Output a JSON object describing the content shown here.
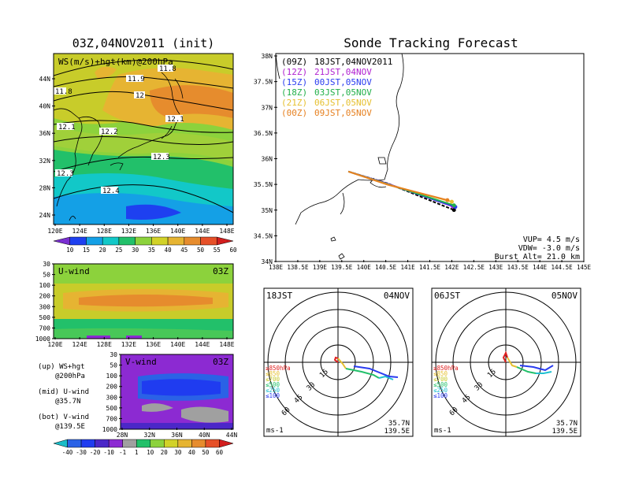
{
  "left_title": "03Z,04NOV2011 (init)",
  "right_title": "Sonde Tracking Forecast",
  "colors": {
    "ws_scale": [
      "#7a2fd1",
      "#1e40f0",
      "#14a0e6",
      "#12c8c8",
      "#22c06a",
      "#8cd23c",
      "#d2d228",
      "#e6b432",
      "#e68c2d",
      "#e65028",
      "#d21e1e"
    ],
    "wind_scale": [
      "#1abcc8",
      "#2a62e6",
      "#1f3cf0",
      "#4b27c8",
      "#8c2ad2",
      "#a0a0a0",
      "#22c06a",
      "#8cd23c",
      "#d2d228",
      "#e6b432",
      "#e68c2d",
      "#e65028",
      "#d21e1e"
    ]
  },
  "map_panel": {
    "label": "WS(m/s)+hgt(km)@200hPa",
    "lat_ticks": [
      "44N",
      "40N",
      "36N",
      "32N",
      "28N",
      "24N"
    ],
    "lon_ticks": [
      "120E",
      "124E",
      "128E",
      "132E",
      "136E",
      "140E",
      "144E",
      "148E"
    ],
    "contour_labels": [
      "11.8",
      "11.8",
      "11.9",
      "12",
      "12.1",
      "12.1",
      "12.2",
      "12.3",
      "12.3",
      "12.4"
    ],
    "colorbar_ticks": [
      "10",
      "15",
      "20",
      "25",
      "30",
      "35",
      "40",
      "45",
      "50",
      "55",
      "60"
    ]
  },
  "u_panel": {
    "label": "U-wind",
    "time": "03Z",
    "p_ticks": [
      "30",
      "50",
      "100",
      "200",
      "300",
      "500",
      "700",
      "1000"
    ],
    "lon_ticks": [
      "120E",
      "124E",
      "128E",
      "132E",
      "136E",
      "140E",
      "144E",
      "148E"
    ]
  },
  "v_panel": {
    "label": "V-wind",
    "time": "03Z",
    "p_ticks": [
      "30",
      "50",
      "100",
      "200",
      "300",
      "500",
      "700",
      "1000"
    ],
    "lat_ticks": [
      "28N",
      "32N",
      "36N",
      "40N",
      "44N"
    ],
    "colorbar_ticks": [
      "-40",
      "-30",
      "-20",
      "-10",
      "-1",
      "1",
      "10",
      "20",
      "30",
      "40",
      "50",
      "60"
    ]
  },
  "legend_text": [
    {
      "a": "(up) WS+hgt",
      "b": "@200hPa"
    },
    {
      "a": "(mid) U-wind",
      "b": "@35.7N"
    },
    {
      "a": "(bot) V-wind",
      "b": "@139.5E"
    }
  ],
  "track_panel": {
    "lat_ticks": [
      "38N",
      "37.5N",
      "37N",
      "36.5N",
      "36N",
      "35.5N",
      "35N",
      "34.5N",
      "34N"
    ],
    "lon_ticks": [
      "138E",
      "138.5E",
      "139E",
      "139.5E",
      "140E",
      "140.5E",
      "141E",
      "141.5E",
      "142E",
      "142.5E",
      "143E",
      "143.5E",
      "144E",
      "144.5E",
      "145E"
    ],
    "legend": [
      {
        "run": "(09Z)",
        "time": "18JST,04NOV2011",
        "color": "#000000"
      },
      {
        "run": "(12Z)",
        "time": "21JST,04NOV",
        "color": "#b01fd0"
      },
      {
        "run": "(15Z)",
        "time": "00JST,05NOV",
        "color": "#2a3cf0"
      },
      {
        "run": "(18Z)",
        "time": "03JST,05NOV",
        "color": "#22b04a"
      },
      {
        "run": "(21Z)",
        "time": "06JST,05NOV",
        "color": "#e6c030"
      },
      {
        "run": "(00Z)",
        "time": "09JST,05NOV",
        "color": "#e68020"
      }
    ],
    "params": [
      "VUP= 4.5 m/s",
      "VDW= -3.0 m/s",
      "Burst Alt= 21.0 km"
    ]
  },
  "hodographs": [
    {
      "jst": "18JST",
      "date": "04NOV",
      "ring_labels": [
        "15",
        "30",
        "45",
        "60"
      ],
      "unit": "ms-1",
      "loc1": "35.7N",
      "loc2": "139.5E",
      "levels": [
        {
          "t": "≥850hPa",
          "c": "#e02020"
        },
        {
          "t": "≤850",
          "c": "#e6c030"
        },
        {
          "t": "≤700",
          "c": "#c8c828"
        },
        {
          "t": "≤500",
          "c": "#22c06a"
        },
        {
          "t": "≤250",
          "c": "#20c0d0"
        },
        {
          "t": "≤100",
          "c": "#2a3cf0"
        }
      ]
    },
    {
      "jst": "06JST",
      "date": "05NOV",
      "ring_labels": [
        "15",
        "30",
        "45",
        "60"
      ],
      "unit": "ms-1",
      "loc1": "35.7N",
      "loc2": "139.5E",
      "levels": [
        {
          "t": "≥850hPa",
          "c": "#e02020"
        },
        {
          "t": "≤850",
          "c": "#e6c030"
        },
        {
          "t": "≤700",
          "c": "#c8c828"
        },
        {
          "t": "≤500",
          "c": "#22c06a"
        },
        {
          "t": "≤250",
          "c": "#20c0d0"
        },
        {
          "t": "≤100",
          "c": "#2a3cf0"
        }
      ]
    }
  ]
}
